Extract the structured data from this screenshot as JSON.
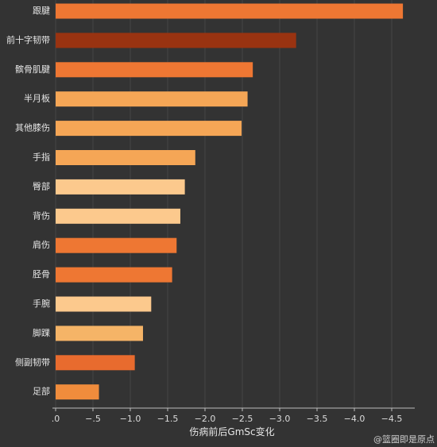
{
  "chart_data": {
    "type": "bar",
    "orientation": "horizontal",
    "categories": [
      "跟腱",
      "前十字韧带",
      "髌骨肌腱",
      "半月板",
      "其他膝伤",
      "手指",
      "臀部",
      "背伤",
      "肩伤",
      "胫骨",
      "手腕",
      "脚踝",
      "侧副韧带",
      "足部"
    ],
    "values": [
      -4.65,
      -3.22,
      -2.64,
      -2.57,
      -2.49,
      -1.87,
      -1.73,
      -1.67,
      -1.62,
      -1.56,
      -1.28,
      -1.17,
      -1.06,
      -0.58
    ],
    "colors": [
      "#ee7733",
      "#993311",
      "#ee7733",
      "#f5a656",
      "#f5a656",
      "#f5a656",
      "#fcc98d",
      "#fcc98d",
      "#ee7733",
      "#ee7733",
      "#fcc98d",
      "#f5b467",
      "#e86b2e",
      "#f08c3c"
    ],
    "xlabel": "伤病前后GmSc变化",
    "xlim": [
      0,
      -4.8
    ],
    "ticks": [
      0,
      -0.5,
      -1.0,
      -1.5,
      -2.0,
      -2.5,
      -3.0,
      -3.5,
      -4.0,
      -4.5
    ],
    "tick_labels": [
      ".0",
      "−.5",
      "−1.0",
      "−1.5",
      "−2.0",
      "−2.5",
      "−3.0",
      "−3.5",
      "−4.0",
      "−4.5"
    ],
    "grid": true
  },
  "credit": "@篮圈即是原点"
}
